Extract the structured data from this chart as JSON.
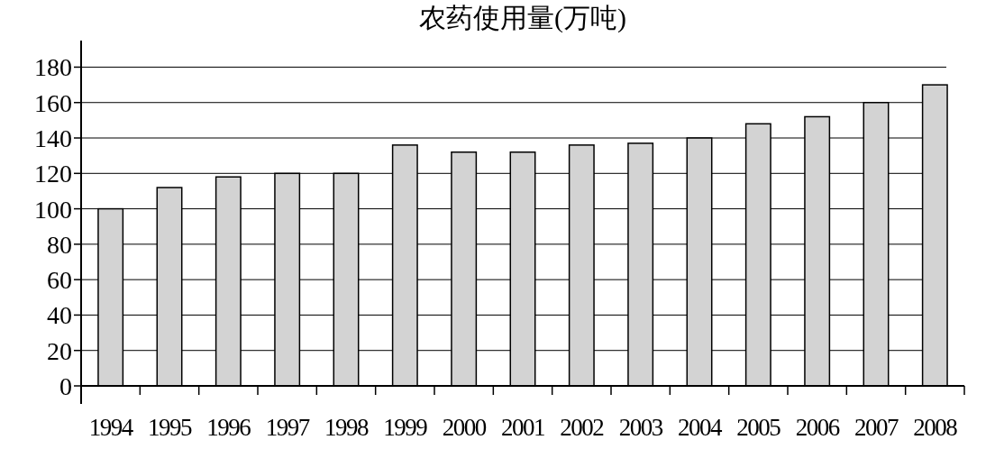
{
  "chart_data": {
    "type": "bar",
    "title": "农药使用量(万吨)",
    "categories": [
      "1994",
      "1995",
      "1996",
      "1997",
      "1998",
      "1999",
      "2000",
      "2001",
      "2002",
      "2003",
      "2004",
      "2005",
      "2006",
      "2007",
      "2008"
    ],
    "values": [
      100,
      112,
      118,
      120,
      120,
      136,
      132,
      132,
      136,
      137,
      140,
      148,
      152,
      160,
      170
    ],
    "color": "#d3d3d3",
    "ylim": [
      0,
      195
    ],
    "yticks": [
      0,
      20,
      40,
      60,
      80,
      100,
      120,
      140,
      160,
      180
    ],
    "grid": "y"
  }
}
